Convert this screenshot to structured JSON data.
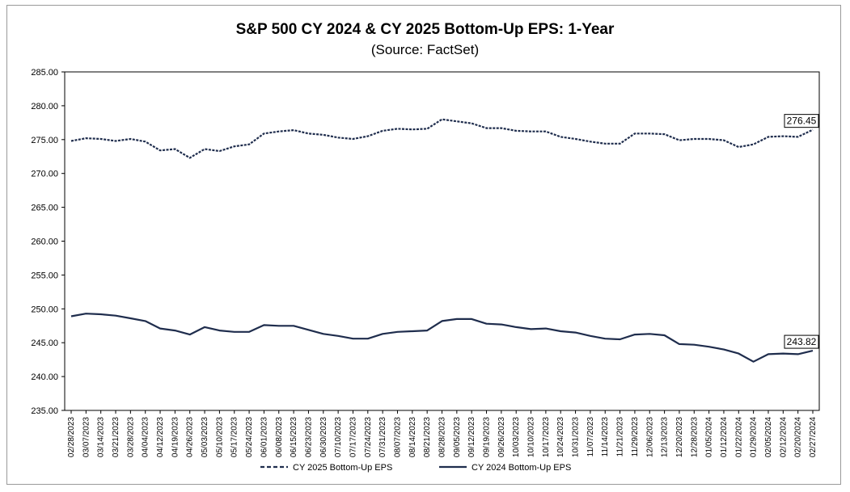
{
  "chart_data": {
    "type": "line",
    "title": "S&P 500 CY 2024 & CY 2025 Bottom-Up  EPS: 1-Year",
    "subtitle": "(Source: FactSet)",
    "xlabel": "",
    "ylabel": "",
    "ylim": [
      235,
      285
    ],
    "yticks": [
      "285.00",
      "280.00",
      "275.00",
      "270.00",
      "265.00",
      "260.00",
      "255.00",
      "250.00",
      "245.00",
      "240.00",
      "235.00"
    ],
    "grid": false,
    "legend_position": "bottom",
    "xtick_labels": [
      "02/28/2023",
      "03/07/2023",
      "03/14/2023",
      "03/21/2023",
      "03/28/2023",
      "04/04/2023",
      "04/12/2023",
      "04/19/2023",
      "04/26/2023",
      "05/03/2023",
      "05/10/2023",
      "05/17/2023",
      "05/24/2023",
      "06/01/2023",
      "06/08/2023",
      "06/15/2023",
      "06/23/2023",
      "06/30/2023",
      "07/10/2023",
      "07/17/2023",
      "07/24/2023",
      "07/31/2023",
      "08/07/2023",
      "08/14/2023",
      "08/21/2023",
      "08/28/2023",
      "09/05/2023",
      "09/12/2023",
      "09/19/2023",
      "09/26/2023",
      "10/03/2023",
      "10/10/2023",
      "10/17/2023",
      "10/24/2023",
      "10/31/2023",
      "11/07/2023",
      "11/14/2023",
      "11/21/2023",
      "11/29/2023",
      "12/06/2023",
      "12/13/2023",
      "12/20/2023",
      "12/28/2023",
      "01/05/2024",
      "01/12/2024",
      "01/22/2024",
      "01/29/2024",
      "02/05/2024",
      "02/12/2024",
      "02/20/2024",
      "02/27/2024"
    ],
    "series": [
      {
        "name": "CY 2025 Bottom-Up EPS",
        "style": "dashed",
        "color": "#1f2d4d",
        "end_label": "276.45",
        "values": [
          274.8,
          275.2,
          275.1,
          274.8,
          275.1,
          274.7,
          273.4,
          273.6,
          272.3,
          273.6,
          273.3,
          274.0,
          274.3,
          275.9,
          276.2,
          276.4,
          275.9,
          275.7,
          275.3,
          275.1,
          275.5,
          276.3,
          276.6,
          276.5,
          276.6,
          278.0,
          277.7,
          277.4,
          276.7,
          276.7,
          276.3,
          276.2,
          276.2,
          275.4,
          275.1,
          274.7,
          274.4,
          274.4,
          275.9,
          275.9,
          275.8,
          274.9,
          275.1,
          275.1,
          274.9,
          273.9,
          274.3,
          275.4,
          275.5,
          275.4,
          276.45
        ]
      },
      {
        "name": "CY 2024 Bottom-Up EPS",
        "style": "solid",
        "color": "#1f2d4d",
        "end_label": "243.82",
        "values": [
          248.9,
          249.3,
          249.2,
          249.0,
          248.6,
          248.2,
          247.1,
          246.8,
          246.2,
          247.3,
          246.8,
          246.6,
          246.6,
          247.6,
          247.5,
          247.5,
          246.9,
          246.3,
          246.0,
          245.6,
          245.6,
          246.3,
          246.6,
          246.7,
          246.8,
          248.2,
          248.5,
          248.5,
          247.8,
          247.7,
          247.3,
          247.0,
          247.1,
          246.7,
          246.5,
          246.0,
          245.6,
          245.5,
          246.2,
          246.3,
          246.1,
          244.8,
          244.7,
          244.4,
          244.0,
          243.4,
          242.2,
          243.3,
          243.4,
          243.3,
          243.82
        ]
      }
    ]
  }
}
